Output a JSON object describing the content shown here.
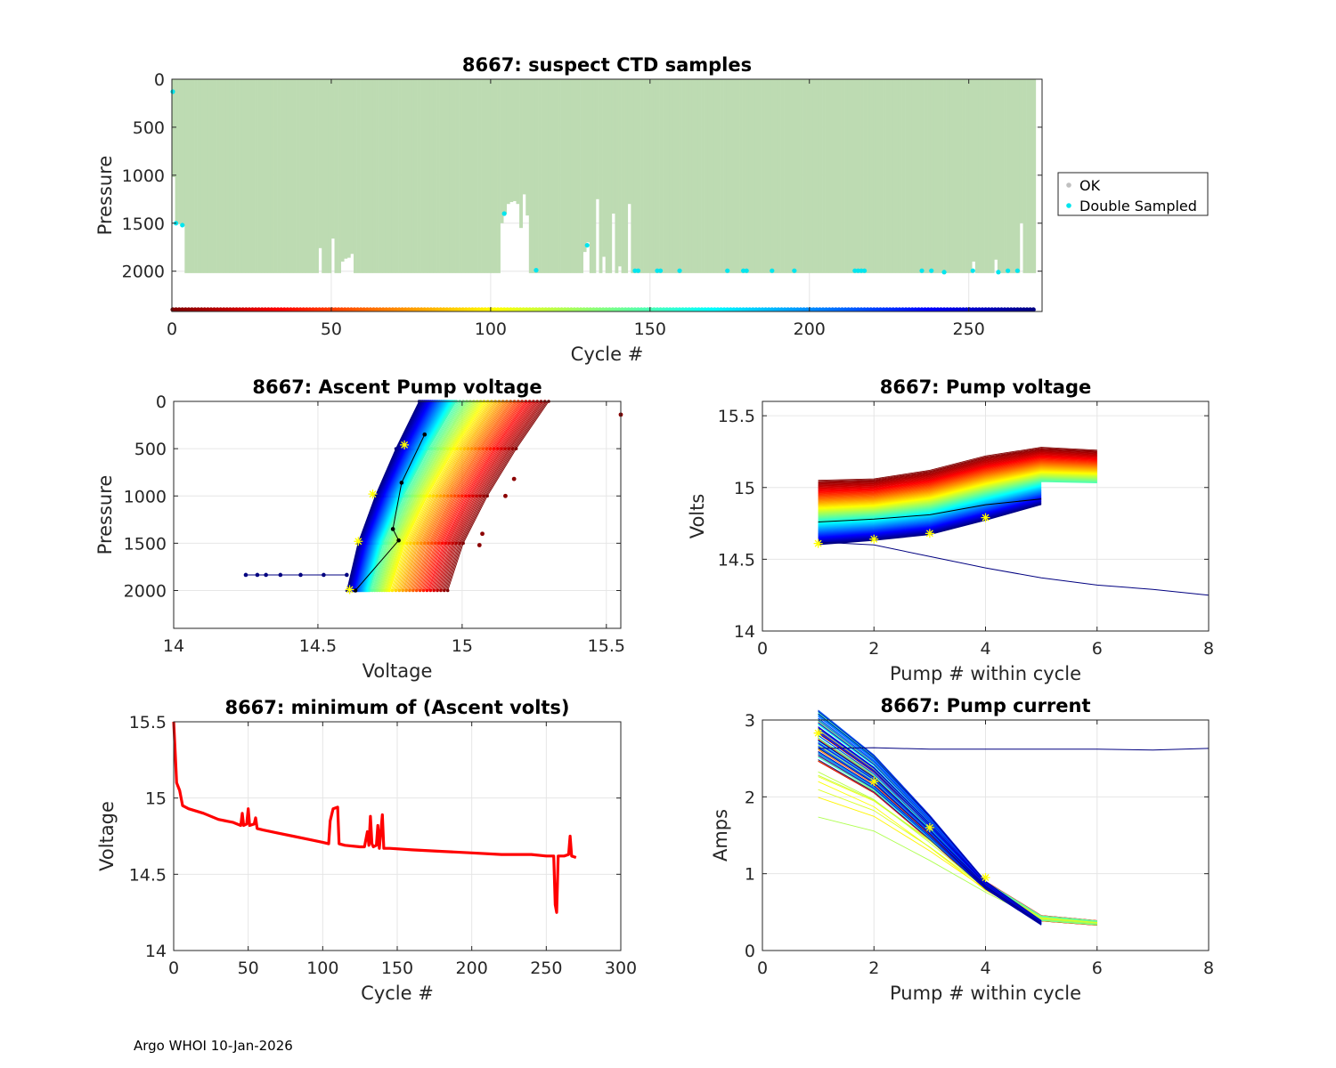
{
  "footer": "Argo WHOI 10-Jan-2026",
  "chart_data": [
    {
      "id": "ctd",
      "type": "scatter",
      "title": "8667: suspect CTD samples",
      "xlabel": "Cycle #",
      "ylabel": "Pressure",
      "xlim": [
        0,
        273
      ],
      "ylim": [
        2420,
        0
      ],
      "y_reversed": true,
      "xticks": [
        0,
        50,
        100,
        150,
        200,
        250
      ],
      "yticks": [
        0,
        500,
        1000,
        1500,
        2000
      ],
      "grid": true,
      "legend": {
        "position": "outside-right",
        "entries": [
          {
            "label": "OK",
            "color": "#c0c0c0"
          },
          {
            "label": "Double Sampled",
            "color": "#00e5ee"
          }
        ]
      },
      "ok_fill_color": "#bddbb2",
      "profile_max_pressure": 2020,
      "shallow_profiles": [
        {
          "cycle": 0,
          "max_p": 1020
        },
        {
          "cycle": 1,
          "max_p": 1500
        },
        {
          "cycle": 2,
          "max_p": 1510
        },
        {
          "cycle": 3,
          "max_p": 1530
        },
        {
          "cycle": 46,
          "max_p": 1760
        },
        {
          "cycle": 50,
          "max_p": 1660
        },
        {
          "cycle": 53,
          "max_p": 1900
        },
        {
          "cycle": 54,
          "max_p": 1870
        },
        {
          "cycle": 55,
          "max_p": 1860
        },
        {
          "cycle": 56,
          "max_p": 1820
        },
        {
          "cycle": 103,
          "max_p": 1500
        },
        {
          "cycle": 104,
          "max_p": 1400
        },
        {
          "cycle": 105,
          "max_p": 1300
        },
        {
          "cycle": 106,
          "max_p": 1280
        },
        {
          "cycle": 107,
          "max_p": 1270
        },
        {
          "cycle": 108,
          "max_p": 1300
        },
        {
          "cycle": 109,
          "max_p": 1550
        },
        {
          "cycle": 110,
          "max_p": 1200
        },
        {
          "cycle": 111,
          "max_p": 1420
        },
        {
          "cycle": 129,
          "max_p": 1800
        },
        {
          "cycle": 130,
          "max_p": 1700
        },
        {
          "cycle": 133,
          "max_p": 1250
        },
        {
          "cycle": 135,
          "max_p": 1850
        },
        {
          "cycle": 138,
          "max_p": 1400
        },
        {
          "cycle": 140,
          "max_p": 1950
        },
        {
          "cycle": 143,
          "max_p": 1300
        },
        {
          "cycle": 251,
          "max_p": 1900
        },
        {
          "cycle": 258,
          "max_p": 1880
        },
        {
          "cycle": 266,
          "max_p": 1500
        }
      ],
      "double_sampled": [
        {
          "cycle": 0,
          "p": 130
        },
        {
          "cycle": 1,
          "p": 1500
        },
        {
          "cycle": 3,
          "p": 1520
        },
        {
          "cycle": 104,
          "p": 1400
        },
        {
          "cycle": 130,
          "p": 1730
        },
        {
          "cycle": 114,
          "p": 1990
        },
        {
          "cycle": 145,
          "p": 1995
        },
        {
          "cycle": 146,
          "p": 1995
        },
        {
          "cycle": 152,
          "p": 1995
        },
        {
          "cycle": 153,
          "p": 1995
        },
        {
          "cycle": 159,
          "p": 1995
        },
        {
          "cycle": 174,
          "p": 1995
        },
        {
          "cycle": 179,
          "p": 1995
        },
        {
          "cycle": 180,
          "p": 1995
        },
        {
          "cycle": 188,
          "p": 1995
        },
        {
          "cycle": 195,
          "p": 1995
        },
        {
          "cycle": 214,
          "p": 1995
        },
        {
          "cycle": 215,
          "p": 1995
        },
        {
          "cycle": 216,
          "p": 1995
        },
        {
          "cycle": 217,
          "p": 1995
        },
        {
          "cycle": 235,
          "p": 1995
        },
        {
          "cycle": 238,
          "p": 1995
        },
        {
          "cycle": 242,
          "p": 2010
        },
        {
          "cycle": 251,
          "p": 1995
        },
        {
          "cycle": 259,
          "p": 2010
        },
        {
          "cycle": 262,
          "p": 1995
        },
        {
          "cycle": 265,
          "p": 1995
        }
      ],
      "cycle_color_bar_pressure": 2400,
      "n_cycles": 271
    },
    {
      "id": "ascent",
      "type": "line",
      "title": "8667: Ascent Pump voltage",
      "xlabel": "Voltage",
      "ylabel": "Pressure",
      "xlim": [
        14,
        15.55
      ],
      "ylim": [
        2400,
        0
      ],
      "y_reversed": true,
      "xticks": [
        14,
        14.5,
        15,
        15.5
      ],
      "yticks": [
        0,
        500,
        1000,
        1500,
        2000
      ],
      "grid": true,
      "series_desc": "one line per cycle coloured by cycle number (red early to dark blue late)",
      "pressure_levels": [
        2000,
        1500,
        1000,
        500,
        0
      ],
      "deep_voltage_by_cycle": [
        [
          0,
          14.95
        ],
        [
          100,
          14.75
        ],
        [
          150,
          14.68
        ],
        [
          271,
          14.6
        ]
      ],
      "surface_voltage_by_cycle": [
        [
          0,
          15.3
        ],
        [
          100,
          15.08
        ],
        [
          150,
          14.98
        ],
        [
          271,
          14.85
        ]
      ],
      "outlier_points": [
        {
          "v": 15.55,
          "p": 140
        },
        {
          "v": 15.15,
          "p": 1000
        },
        {
          "v": 15.07,
          "p": 1400
        },
        {
          "v": 15.06,
          "p": 1520
        },
        {
          "v": 15.18,
          "p": 820
        }
      ],
      "horizontal_segment": {
        "p": 1835,
        "v": [
          14.25,
          14.29,
          14.32,
          14.37,
          14.44,
          14.52,
          14.6
        ]
      },
      "black_profile": [
        [
          14.63,
          2000
        ],
        [
          14.78,
          1470
        ],
        [
          14.76,
          1350
        ],
        [
          14.79,
          860
        ],
        [
          14.87,
          350
        ]
      ],
      "yellow_stars": [
        [
          14.61,
          1990
        ],
        [
          14.64,
          1480
        ],
        [
          14.69,
          980
        ],
        [
          14.8,
          460
        ]
      ]
    },
    {
      "id": "pumpv",
      "type": "line",
      "title": "8667: Pump voltage",
      "xlabel": "Pump # within cycle",
      "ylabel": "Volts",
      "xlim": [
        0,
        8
      ],
      "ylim": [
        14,
        15.6
      ],
      "xticks": [
        0,
        2,
        4,
        6,
        8
      ],
      "yticks": [
        14,
        14.5,
        15,
        15.5
      ],
      "grid": true,
      "series_desc": "voltage per pump stroke, one line per cycle coloured by cycle",
      "early_profile": [
        15.05,
        15.06,
        15.12,
        15.22,
        15.28,
        15.26
      ],
      "late_profile": [
        14.6,
        14.63,
        14.67,
        14.77,
        14.88
      ],
      "odd_series": {
        "x": [
          1,
          2,
          3,
          4,
          5,
          6,
          7,
          8
        ],
        "y": [
          14.62,
          14.6,
          14.52,
          14.44,
          14.37,
          14.32,
          14.29,
          14.25
        ]
      },
      "black_series": {
        "x": [
          1,
          2,
          3,
          4,
          5
        ],
        "y": [
          14.76,
          14.78,
          14.81,
          14.88,
          14.92
        ]
      },
      "yellow_stars": [
        [
          1,
          14.61
        ],
        [
          2,
          14.64
        ],
        [
          3,
          14.68
        ],
        [
          4,
          14.79
        ]
      ]
    },
    {
      "id": "minv",
      "type": "line",
      "title": "8667: minimum of (Ascent volts)",
      "xlabel": "Cycle #",
      "ylabel": "Voltage",
      "xlim": [
        0,
        300
      ],
      "ylim": [
        14,
        15.5
      ],
      "xticks": [
        0,
        50,
        100,
        150,
        200,
        250,
        300
      ],
      "yticks": [
        14,
        14.5,
        15,
        15.5
      ],
      "grid": true,
      "color": "#ff0000",
      "series": [
        [
          0,
          15.5
        ],
        [
          1,
          15.3
        ],
        [
          2,
          15.1
        ],
        [
          4,
          15.05
        ],
        [
          6,
          14.95
        ],
        [
          10,
          14.93
        ],
        [
          20,
          14.9
        ],
        [
          30,
          14.86
        ],
        [
          40,
          14.84
        ],
        [
          45,
          14.82
        ],
        [
          46,
          14.9
        ],
        [
          47,
          14.82
        ],
        [
          49,
          14.83
        ],
        [
          50,
          14.93
        ],
        [
          51,
          14.82
        ],
        [
          54,
          14.83
        ],
        [
          55,
          14.87
        ],
        [
          56,
          14.8
        ],
        [
          60,
          14.79
        ],
        [
          70,
          14.77
        ],
        [
          80,
          14.75
        ],
        [
          90,
          14.73
        ],
        [
          100,
          14.71
        ],
        [
          104,
          14.7
        ],
        [
          105,
          14.85
        ],
        [
          107,
          14.93
        ],
        [
          110,
          14.94
        ],
        [
          111,
          14.7
        ],
        [
          115,
          14.69
        ],
        [
          125,
          14.68
        ],
        [
          128,
          14.68
        ],
        [
          130,
          14.78
        ],
        [
          131,
          14.69
        ],
        [
          132,
          14.88
        ],
        [
          133,
          14.7
        ],
        [
          134,
          14.68
        ],
        [
          136,
          14.69
        ],
        [
          137,
          14.82
        ],
        [
          138,
          14.67
        ],
        [
          140,
          14.89
        ],
        [
          141,
          14.67
        ],
        [
          145,
          14.67
        ],
        [
          160,
          14.66
        ],
        [
          180,
          14.65
        ],
        [
          200,
          14.64
        ],
        [
          220,
          14.63
        ],
        [
          240,
          14.63
        ],
        [
          250,
          14.62
        ],
        [
          255,
          14.62
        ],
        [
          256,
          14.3
        ],
        [
          257,
          14.25
        ],
        [
          258,
          14.62
        ],
        [
          262,
          14.62
        ],
        [
          265,
          14.63
        ],
        [
          266,
          14.75
        ],
        [
          267,
          14.62
        ],
        [
          270,
          14.61
        ]
      ]
    },
    {
      "id": "pumpc",
      "type": "line",
      "title": "8667: Pump current",
      "xlabel": "Pump # within cycle",
      "ylabel": "Amps",
      "xlim": [
        0,
        8
      ],
      "ylim": [
        0,
        3
      ],
      "xticks": [
        0,
        2,
        4,
        6,
        8
      ],
      "yticks": [
        0,
        1,
        2,
        3
      ],
      "grid": true,
      "series_desc": "current per pump stroke, one line per cycle coloured by cycle",
      "typical_profile": [
        2.8,
        2.3,
        1.6,
        0.85,
        0.42,
        0.35
      ],
      "odd_series": {
        "x": [
          1,
          2,
          3,
          4,
          5,
          6,
          7,
          8
        ],
        "y": [
          2.63,
          2.64,
          2.62,
          2.62,
          2.62,
          2.62,
          2.61,
          2.63
        ]
      },
      "yellow_stars": [
        [
          1,
          2.83
        ],
        [
          2,
          2.2
        ],
        [
          3,
          1.6
        ],
        [
          4,
          0.95
        ]
      ]
    }
  ]
}
